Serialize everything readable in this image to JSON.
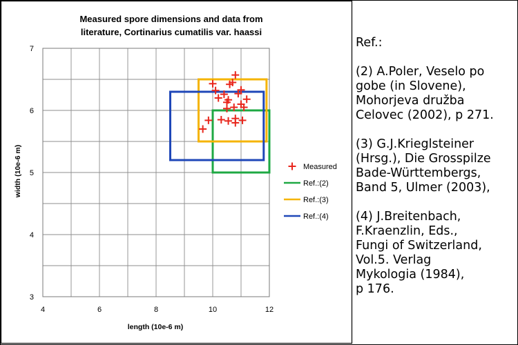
{
  "chart_data": {
    "type": "scatter",
    "title_lines": [
      "Measured spore dimensions and data from",
      "literature, Cortinarius cumatilis var. haassi"
    ],
    "xlabel": "length (10e-6 m)",
    "ylabel": "width (10e-6 m)",
    "xlim": [
      4,
      12
    ],
    "ylim": [
      3,
      7
    ],
    "x_ticks": [
      "4",
      "6",
      "8",
      "10",
      "12"
    ],
    "y_ticks": [
      "3",
      "4",
      "5",
      "6",
      "7"
    ],
    "grid": true,
    "legend_position": "right",
    "series": [
      {
        "name": "Measured",
        "marker": "plus",
        "color": "#e8261c",
        "points": [
          [
            10.8,
            6.57
          ],
          [
            10.0,
            6.43
          ],
          [
            10.6,
            6.42
          ],
          [
            10.7,
            6.45
          ],
          [
            10.1,
            6.32
          ],
          [
            11.0,
            6.33
          ],
          [
            10.9,
            6.27
          ],
          [
            10.4,
            6.26
          ],
          [
            10.2,
            6.2
          ],
          [
            10.55,
            6.17
          ],
          [
            11.2,
            6.18
          ],
          [
            11.0,
            6.1
          ],
          [
            10.5,
            6.13
          ],
          [
            10.75,
            6.05
          ],
          [
            11.1,
            6.05
          ],
          [
            10.5,
            6.03
          ],
          [
            9.85,
            5.84
          ],
          [
            10.3,
            5.85
          ],
          [
            10.55,
            5.83
          ],
          [
            10.8,
            5.87
          ],
          [
            11.05,
            5.84
          ],
          [
            10.8,
            5.8
          ],
          [
            9.65,
            5.7
          ]
        ]
      },
      {
        "name": "Ref.:(2)",
        "shape": "rect",
        "color": "#1ea843",
        "x_range": [
          10,
          12
        ],
        "y_range": [
          5,
          6
        ]
      },
      {
        "name": "Ref.:(3)",
        "shape": "rect",
        "color": "#f5b400",
        "x_range": [
          9.5,
          11.9
        ],
        "y_range": [
          5.5,
          6.5
        ]
      },
      {
        "name": "Ref.:(4)",
        "shape": "rect",
        "color": "#1f47b8",
        "x_range": [
          8.5,
          11.8
        ],
        "y_range": [
          5.2,
          6.3
        ]
      }
    ]
  },
  "references": {
    "heading": "Ref.:",
    "entries": [
      "(2) A.Poler, Veselo po\ngobe (in Slovene),\nMohorjeva družba\nCelovec (2002), p 271.",
      "(3) G.J.Krieglsteiner\n(Hrsg.), Die Grosspilze\nBade-Württembergs,\nBand 5, Ulmer (2003),",
      "(4) J.Breitenbach,\nF.Kraenzlin, Eds.,\nFungi of Switzerland,\nVol.5. Verlag\nMykologia (1984),\np 176."
    ]
  }
}
